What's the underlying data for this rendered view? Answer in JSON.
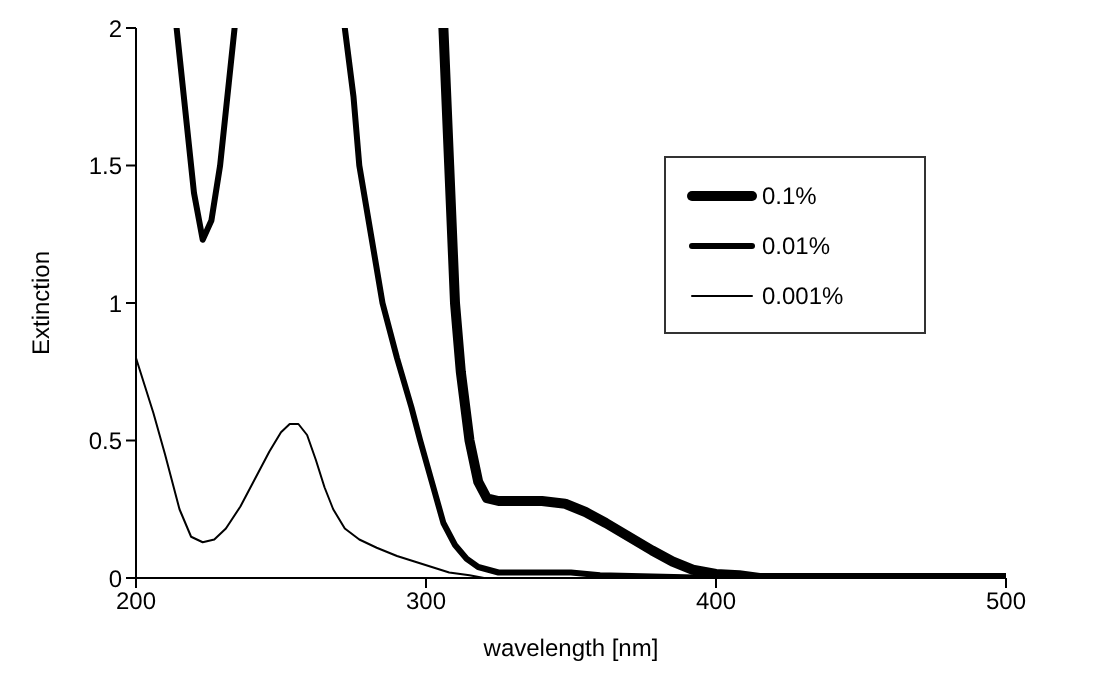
{
  "chart_data": {
    "type": "line",
    "xlabel": "wavelength [nm]",
    "ylabel": "Extinction",
    "xlim": [
      200,
      500
    ],
    "xticks": [
      200,
      300,
      400,
      500
    ],
    "ylim": [
      0,
      2
    ],
    "yticks": [
      0,
      0.5,
      1,
      1.5,
      2
    ],
    "grid": false,
    "legend": "top right",
    "marker": "none",
    "line_style": "solid",
    "series": [
      {
        "name": "0.1%",
        "color": "#000000",
        "x": [
          306,
          308,
          310,
          312,
          315,
          318,
          321,
          325,
          330,
          340,
          348,
          355,
          362,
          370,
          378,
          385,
          392,
          400,
          408,
          415,
          430,
          460,
          500
        ],
        "values": [
          2,
          1.5,
          1,
          0.75,
          0.5,
          0.35,
          0.29,
          0.28,
          0.28,
          0.28,
          0.27,
          0.24,
          0.2,
          0.15,
          0.1,
          0.06,
          0.03,
          0.015,
          0.01,
          0,
          0,
          0,
          0
        ]
      },
      {
        "name": "0.01%",
        "color": "#000000",
        "x": [
          214,
          217,
          220,
          223,
          226,
          229,
          232,
          234,
          250,
          272,
          275,
          277,
          281,
          285,
          290,
          295,
          298,
          302,
          306,
          310,
          314,
          318,
          325,
          335,
          350,
          360,
          400,
          500
        ],
        "values": [
          2,
          1.7,
          1.4,
          1.23,
          1.3,
          1.5,
          1.8,
          2,
          null,
          2,
          1.75,
          1.5,
          1.25,
          1,
          0.8,
          0.62,
          0.5,
          0.35,
          0.2,
          0.12,
          0.07,
          0.04,
          0.02,
          0.02,
          0.02,
          0.01,
          0,
          0
        ]
      },
      {
        "name": "0.001%",
        "color": "#000000",
        "x": [
          200,
          203,
          206,
          210,
          215,
          219,
          223,
          227,
          231,
          236,
          241,
          246,
          250,
          253,
          256,
          259,
          262,
          265,
          268,
          272,
          277,
          283,
          290,
          296,
          302,
          308,
          315,
          320,
          350,
          500
        ],
        "values": [
          0.8,
          0.7,
          0.6,
          0.45,
          0.25,
          0.15,
          0.13,
          0.14,
          0.18,
          0.26,
          0.36,
          0.46,
          0.53,
          0.56,
          0.56,
          0.52,
          0.43,
          0.33,
          0.25,
          0.18,
          0.14,
          0.11,
          0.08,
          0.06,
          0.04,
          0.02,
          0.01,
          0,
          0,
          0
        ]
      }
    ]
  }
}
